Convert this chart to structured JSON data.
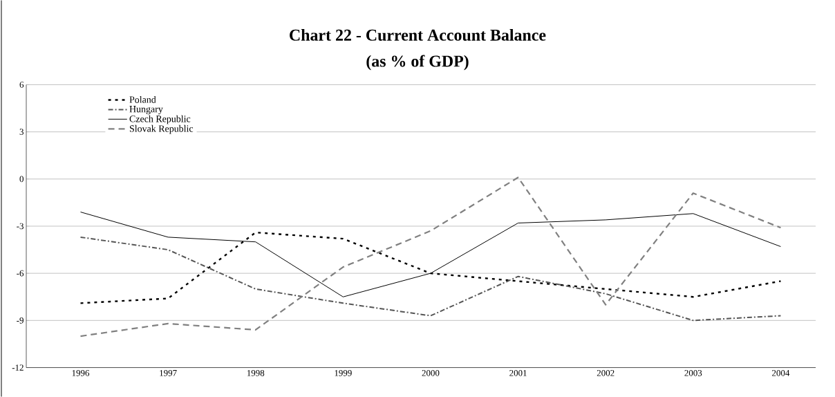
{
  "chart_data": {
    "type": "line",
    "title": "Chart 22 - Current Account Balance",
    "subtitle": "(as % of GDP)",
    "categories": [
      "1996",
      "1997",
      "1998",
      "1999",
      "2000",
      "2001",
      "2002",
      "2003",
      "2004"
    ],
    "series": [
      {
        "name": "Poland",
        "color": "#000000",
        "line_style": "dotted",
        "values": [
          -7.9,
          -7.6,
          -3.4,
          -3.8,
          -6.0,
          -6.5,
          -7.0,
          -7.5,
          -6.5
        ]
      },
      {
        "name": "Hungary",
        "color": "#555555",
        "line_style": "dashdot",
        "values": [
          -3.7,
          -4.5,
          -7.0,
          -7.9,
          -8.7,
          -6.2,
          -7.3,
          -9.0,
          -8.7
        ]
      },
      {
        "name": "Czech Republic",
        "color": "#000000",
        "line_style": "solid",
        "values": [
          -2.1,
          -3.7,
          -4.0,
          -7.5,
          -6.0,
          -2.8,
          -2.6,
          -2.2,
          -4.3
        ]
      },
      {
        "name": "Slovak Republic",
        "color": "#808080",
        "line_style": "dashed",
        "values": [
          -10.0,
          -9.2,
          -9.6,
          -5.6,
          -3.3,
          0.1,
          -8.0,
          -0.9,
          -3.1
        ]
      }
    ],
    "ylim": [
      -12,
      6
    ],
    "yticks": [
      -12,
      -9,
      -6,
      -3,
      0,
      3,
      6
    ],
    "grid": "y",
    "legend": "top left",
    "marker": "none"
  }
}
